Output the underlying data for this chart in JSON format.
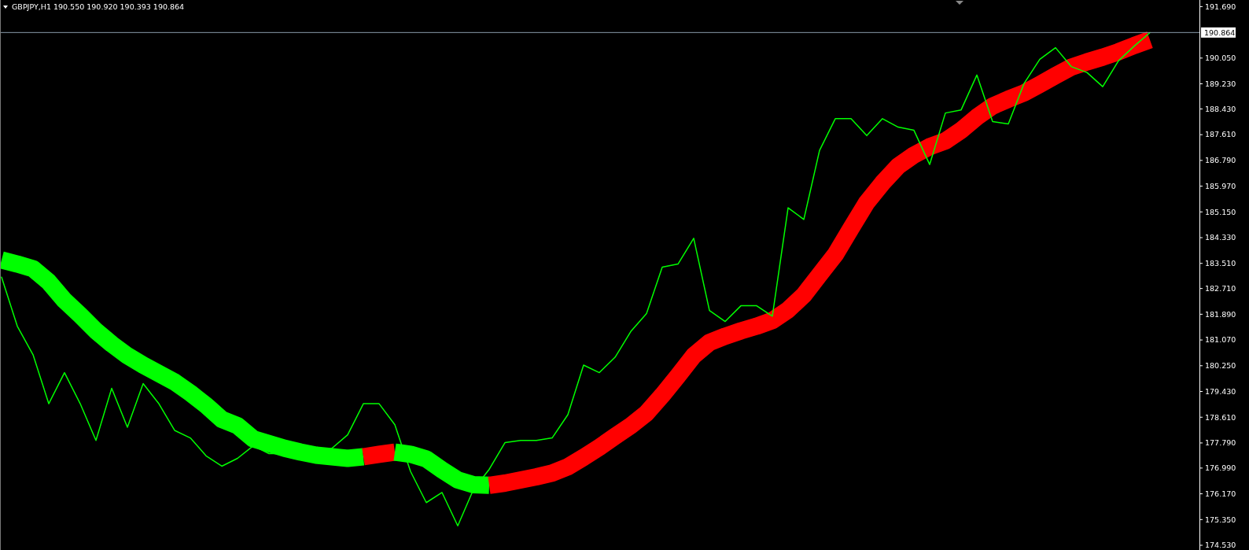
{
  "chart_data": {
    "type": "line",
    "title": "GBPJPY,H1  190.550 190.920 190.393 190.864",
    "categories": [
      null,
      null,
      null,
      null,
      null,
      null,
      null,
      null,
      null,
      null,
      null,
      null,
      null,
      null,
      null,
      null,
      null,
      null,
      null,
      null,
      null,
      null,
      null,
      null,
      null,
      null,
      null,
      null,
      null,
      null,
      null,
      null,
      null,
      null,
      null,
      null,
      null,
      null,
      null,
      null,
      null,
      null,
      null,
      null,
      null,
      null,
      null,
      null,
      null,
      null,
      null,
      null,
      null,
      null,
      null,
      null,
      null,
      null,
      null,
      null,
      null,
      null,
      null,
      null,
      null,
      null,
      null,
      null,
      null,
      null,
      null,
      null,
      null,
      null,
      null,
      null,
      null
    ],
    "series": [
      {
        "color": "#00ff00",
        "values": [
          183.07,
          181.51,
          180.6,
          179.04,
          180.03,
          179.04,
          177.87,
          179.53,
          178.29,
          179.68,
          179.04,
          178.19,
          177.95,
          177.38,
          177.05,
          177.3,
          177.7,
          177.45,
          177.45,
          177.38,
          177.45,
          177.62,
          178.05,
          179.04,
          179.04,
          178.37,
          176.88,
          175.89,
          176.21,
          175.15,
          176.31,
          176.95,
          177.8,
          177.87,
          177.87,
          177.95,
          178.69,
          180.27,
          180.03,
          180.52,
          181.34,
          181.91,
          183.39,
          183.49,
          184.31,
          182.01,
          181.66,
          182.16,
          182.16,
          181.83,
          185.28,
          184.91,
          187.11,
          188.12,
          188.12,
          187.58,
          188.12,
          187.85,
          187.75,
          186.66,
          188.3,
          188.4,
          189.51,
          188.03,
          187.95,
          189.24,
          190.01,
          190.38,
          189.78,
          189.59,
          189.14,
          189.96,
          190.43,
          190.86,
          null,
          null,
          null
        ]
      },
      {
        "color": "#00ff00",
        "values": [
          183.62,
          183.49,
          183.34,
          182.92,
          182.33,
          181.86,
          181.36,
          180.94,
          180.57,
          180.27,
          180.0,
          179.73,
          179.38,
          178.99,
          178.54,
          178.34,
          177.92,
          177.77,
          177.62,
          177.5,
          177.4,
          177.35,
          177.3,
          177.35,
          null,
          null,
          null,
          null,
          null,
          null,
          null,
          null,
          null,
          null,
          null,
          null,
          null,
          null,
          null,
          null,
          null,
          null,
          null,
          null,
          null,
          null,
          null,
          null,
          null,
          null,
          null,
          null,
          null,
          null,
          null,
          null,
          null,
          null,
          null,
          null,
          null,
          null,
          null,
          null,
          null,
          null,
          null,
          null,
          null,
          null,
          null,
          null,
          null,
          null,
          null,
          null,
          null
        ]
      },
      {
        "color": "#ff0000",
        "values": [
          null,
          null,
          null,
          null,
          null,
          null,
          null,
          null,
          null,
          null,
          null,
          null,
          null,
          null,
          null,
          null,
          null,
          null,
          null,
          null,
          null,
          null,
          null,
          177.35,
          177.43,
          177.5,
          null,
          null,
          null,
          null,
          null,
          null,
          null,
          null,
          null,
          null,
          null,
          null,
          null,
          null,
          null,
          null,
          null,
          null,
          null,
          null,
          null,
          null,
          null,
          null,
          null,
          null,
          null,
          null,
          null,
          null,
          null,
          null,
          null,
          null,
          null,
          null,
          null,
          null,
          null,
          null,
          null,
          null,
          null,
          null,
          null,
          null,
          null,
          null,
          null,
          null,
          null
        ]
      },
      {
        "color": "#00ff00",
        "values": [
          null,
          null,
          null,
          null,
          null,
          null,
          null,
          null,
          null,
          null,
          null,
          null,
          null,
          null,
          null,
          null,
          null,
          null,
          null,
          null,
          null,
          null,
          null,
          null,
          null,
          177.5,
          177.43,
          177.28,
          176.93,
          176.61,
          176.46,
          176.44,
          null,
          null,
          null,
          null,
          null,
          null,
          null,
          null,
          null,
          null,
          null,
          null,
          null,
          null,
          null,
          null,
          null,
          null,
          null,
          null,
          null,
          null,
          null,
          null,
          null,
          null,
          null,
          null,
          null,
          null,
          null,
          null,
          null,
          null,
          null,
          null,
          null,
          null,
          null,
          null,
          null,
          null,
          null,
          null,
          null
        ]
      },
      {
        "color": "#ff0000",
        "values": [
          null,
          null,
          null,
          null,
          null,
          null,
          null,
          null,
          null,
          null,
          null,
          null,
          null,
          null,
          null,
          null,
          null,
          null,
          null,
          null,
          null,
          null,
          null,
          null,
          null,
          null,
          null,
          null,
          null,
          null,
          null,
          176.44,
          176.51,
          176.61,
          176.71,
          176.83,
          177.03,
          177.33,
          177.65,
          178.0,
          178.34,
          178.74,
          179.31,
          179.93,
          180.57,
          180.99,
          181.19,
          181.36,
          181.51,
          181.69,
          182.03,
          182.5,
          183.15,
          183.79,
          184.63,
          185.45,
          186.07,
          186.61,
          186.96,
          187.23,
          187.41,
          187.75,
          188.17,
          188.52,
          188.74,
          188.94,
          189.21,
          189.49,
          189.76,
          189.93,
          190.08,
          190.25,
          190.45,
          190.63,
          null,
          null,
          null
        ]
      }
    ],
    "ylim": [
      174.38,
      191.9
    ],
    "yticks": [
      {
        "value": 191.69,
        "label": "191.690"
      },
      {
        "value": 190.05,
        "label": "190.050"
      },
      {
        "value": 189.23,
        "label": "189.230"
      },
      {
        "value": 188.43,
        "label": "188.430"
      },
      {
        "value": 187.61,
        "label": "187.610"
      },
      {
        "value": 186.79,
        "label": "186.790"
      },
      {
        "value": 185.97,
        "label": "185.970"
      },
      {
        "value": 185.15,
        "label": "185.150"
      },
      {
        "value": 184.33,
        "label": "184.330"
      },
      {
        "value": 183.51,
        "label": "183.510"
      },
      {
        "value": 182.71,
        "label": "182.710"
      },
      {
        "value": 181.89,
        "label": "181.890"
      },
      {
        "value": 181.07,
        "label": "181.070"
      },
      {
        "value": 180.25,
        "label": "180.250"
      },
      {
        "value": 179.43,
        "label": "179.430"
      },
      {
        "value": 178.61,
        "label": "178.610"
      },
      {
        "value": 177.79,
        "label": "177.790"
      },
      {
        "value": 176.99,
        "label": "176.990"
      },
      {
        "value": 176.17,
        "label": "176.170"
      },
      {
        "value": 175.35,
        "label": "175.350"
      },
      {
        "value": 174.53,
        "label": "174.530"
      }
    ],
    "ref_lines": [
      {
        "axis": "y",
        "value": 190.864,
        "label": "190.864",
        "color": "#8a9aaa"
      }
    ],
    "tick_labels": "y",
    "grid": false
  }
}
